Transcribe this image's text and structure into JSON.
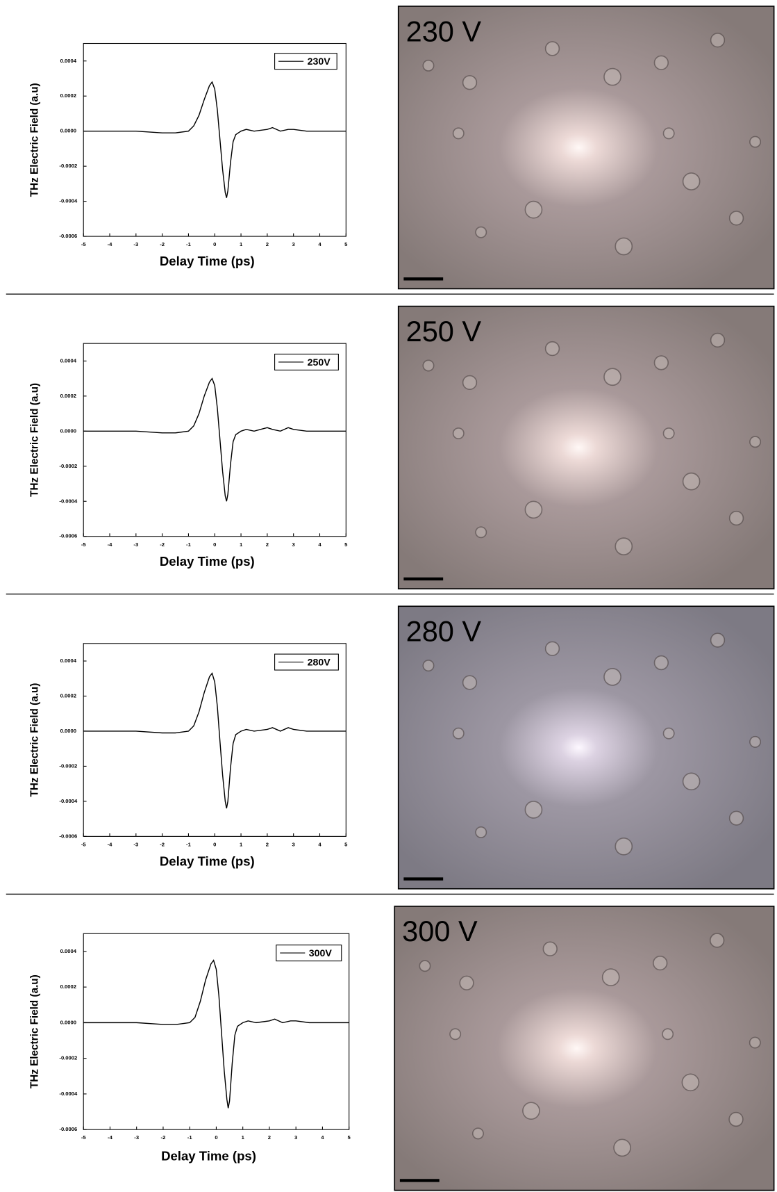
{
  "chart_data": [
    {
      "type": "line",
      "xlabel": "Delay Time (ps)",
      "ylabel": "THz Electric Field (a.u)",
      "x": [
        -5,
        -4,
        -3,
        -2,
        -1.5,
        -1,
        -0.8,
        -0.6,
        -0.4,
        -0.2,
        -0.1,
        0,
        0.1,
        0.2,
        0.3,
        0.4,
        0.45,
        0.5,
        0.6,
        0.7,
        0.8,
        1,
        1.2,
        1.5,
        2,
        2.2,
        2.5,
        2.8,
        3,
        3.5,
        4,
        5
      ],
      "series": [
        {
          "name": "230V",
          "color": "#000000",
          "values": [
            0,
            0,
            0,
            -1e-05,
            -1e-05,
            0,
            3e-05,
            9e-05,
            0.00018,
            0.00026,
            0.00028,
            0.00024,
            0.00012,
            -5e-05,
            -0.00022,
            -0.00035,
            -0.00038,
            -0.00034,
            -0.00018,
            -6e-05,
            -2e-05,
            0,
            1e-05,
            0,
            1e-05,
            2e-05,
            0,
            1e-05,
            1e-05,
            0,
            0,
            0
          ]
        }
      ],
      "xlim": [
        -5,
        5
      ],
      "xticks": [
        -5,
        -4,
        -3,
        -2,
        -1,
        0,
        1,
        2,
        3,
        4,
        5
      ],
      "ylim": [
        -0.0006,
        0.0005
      ],
      "yticks": [
        {
          "value": 0.0004,
          "label": "0.0004"
        },
        {
          "value": 0.0002,
          "label": "0.0002"
        },
        {
          "value": 0,
          "label": "0.0000"
        },
        {
          "value": -0.0002,
          "label": "-0.0002"
        },
        {
          "value": -0.0004,
          "label": "-0.0004"
        },
        {
          "value": -0.0006,
          "label": "-0.0006"
        }
      ]
    },
    {
      "type": "line",
      "xlabel": "Delay Time (ps)",
      "ylabel": "THz Electric Field (a.u)",
      "x": [
        -5,
        -4,
        -3,
        -2,
        -1.5,
        -1,
        -0.8,
        -0.6,
        -0.4,
        -0.2,
        -0.1,
        0,
        0.1,
        0.2,
        0.3,
        0.4,
        0.45,
        0.5,
        0.6,
        0.7,
        0.8,
        1,
        1.2,
        1.5,
        2,
        2.2,
        2.5,
        2.8,
        3,
        3.5,
        4,
        5
      ],
      "series": [
        {
          "name": "250V",
          "color": "#000000",
          "values": [
            0,
            0,
            0,
            -1e-05,
            -1e-05,
            0,
            3e-05,
            0.0001,
            0.0002,
            0.00028,
            0.0003,
            0.00026,
            0.00013,
            -5e-05,
            -0.00023,
            -0.00037,
            -0.0004,
            -0.00036,
            -0.00019,
            -6e-05,
            -2e-05,
            0,
            1e-05,
            0,
            2e-05,
            1e-05,
            0,
            2e-05,
            1e-05,
            0,
            0,
            0
          ]
        }
      ],
      "xlim": [
        -5,
        5
      ],
      "xticks": [
        -5,
        -4,
        -3,
        -2,
        -1,
        0,
        1,
        2,
        3,
        4,
        5
      ],
      "ylim": [
        -0.0006,
        0.0005
      ],
      "yticks": [
        {
          "value": 0.0004,
          "label": "0.0004"
        },
        {
          "value": 0.0002,
          "label": "0.0002"
        },
        {
          "value": 0,
          "label": "0.0000"
        },
        {
          "value": -0.0002,
          "label": "-0.0002"
        },
        {
          "value": -0.0004,
          "label": "-0.0004"
        },
        {
          "value": -0.0006,
          "label": "-0.0006"
        }
      ]
    },
    {
      "type": "line",
      "xlabel": "Delay Time (ps)",
      "ylabel": "THz Electric Field (a.u)",
      "x": [
        -5,
        -4,
        -3,
        -2,
        -1.5,
        -1,
        -0.8,
        -0.6,
        -0.4,
        -0.2,
        -0.1,
        0,
        0.1,
        0.2,
        0.3,
        0.4,
        0.45,
        0.5,
        0.6,
        0.7,
        0.8,
        1,
        1.2,
        1.5,
        2,
        2.2,
        2.5,
        2.8,
        3,
        3.5,
        4,
        5
      ],
      "series": [
        {
          "name": "280V",
          "color": "#000000",
          "values": [
            0,
            0,
            0,
            -1e-05,
            -1e-05,
            0,
            3e-05,
            0.00011,
            0.00022,
            0.00031,
            0.00033,
            0.00028,
            0.00014,
            -6e-05,
            -0.00025,
            -0.0004,
            -0.00044,
            -0.0004,
            -0.00021,
            -7e-05,
            -2e-05,
            0,
            1e-05,
            0,
            1e-05,
            2e-05,
            0,
            2e-05,
            1e-05,
            0,
            0,
            0
          ]
        }
      ],
      "xlim": [
        -5,
        5
      ],
      "xticks": [
        -5,
        -4,
        -3,
        -2,
        -1,
        0,
        1,
        2,
        3,
        4,
        5
      ],
      "ylim": [
        -0.0006,
        0.0005
      ],
      "yticks": [
        {
          "value": 0.0004,
          "label": "0.0004"
        },
        {
          "value": 0.0002,
          "label": "0.0002"
        },
        {
          "value": 0,
          "label": "0.0000"
        },
        {
          "value": -0.0002,
          "label": "-0.0002"
        },
        {
          "value": -0.0004,
          "label": "-0.0004"
        },
        {
          "value": -0.0006,
          "label": "-0.0006"
        }
      ]
    },
    {
      "type": "line",
      "xlabel": "Delay Time (ps)",
      "ylabel": "THz Electric Field (a.u)",
      "x": [
        -5,
        -4,
        -3,
        -2,
        -1.5,
        -1,
        -0.8,
        -0.6,
        -0.4,
        -0.2,
        -0.1,
        0,
        0.1,
        0.2,
        0.3,
        0.4,
        0.45,
        0.5,
        0.6,
        0.7,
        0.8,
        1,
        1.2,
        1.5,
        2,
        2.2,
        2.5,
        2.8,
        3,
        3.5,
        4,
        5
      ],
      "series": [
        {
          "name": "300V",
          "color": "#000000",
          "values": [
            0,
            0,
            0,
            -1e-05,
            -1e-05,
            0,
            3e-05,
            0.00012,
            0.00024,
            0.00033,
            0.00035,
            0.0003,
            0.00015,
            -6e-05,
            -0.00027,
            -0.00043,
            -0.00048,
            -0.00044,
            -0.00023,
            -7e-05,
            -2e-05,
            0,
            1e-05,
            0,
            1e-05,
            2e-05,
            0,
            1e-05,
            1e-05,
            0,
            0,
            0
          ]
        }
      ],
      "xlim": [
        -5,
        5
      ],
      "xticks": [
        -5,
        -4,
        -3,
        -2,
        -1,
        0,
        1,
        2,
        3,
        4,
        5
      ],
      "ylim": [
        -0.0006,
        0.0005
      ],
      "yticks": [
        {
          "value": 0.0004,
          "label": "0.0004"
        },
        {
          "value": 0.0002,
          "label": "0.0002"
        },
        {
          "value": 0,
          "label": "0.0000"
        },
        {
          "value": -0.0002,
          "label": "-0.0002"
        },
        {
          "value": -0.0004,
          "label": "-0.0004"
        },
        {
          "value": -0.0006,
          "label": "-0.0006"
        }
      ]
    }
  ],
  "images": [
    {
      "label": "230 V"
    },
    {
      "label": "250 V"
    },
    {
      "label": "280 V"
    },
    {
      "label": "300 V"
    }
  ]
}
